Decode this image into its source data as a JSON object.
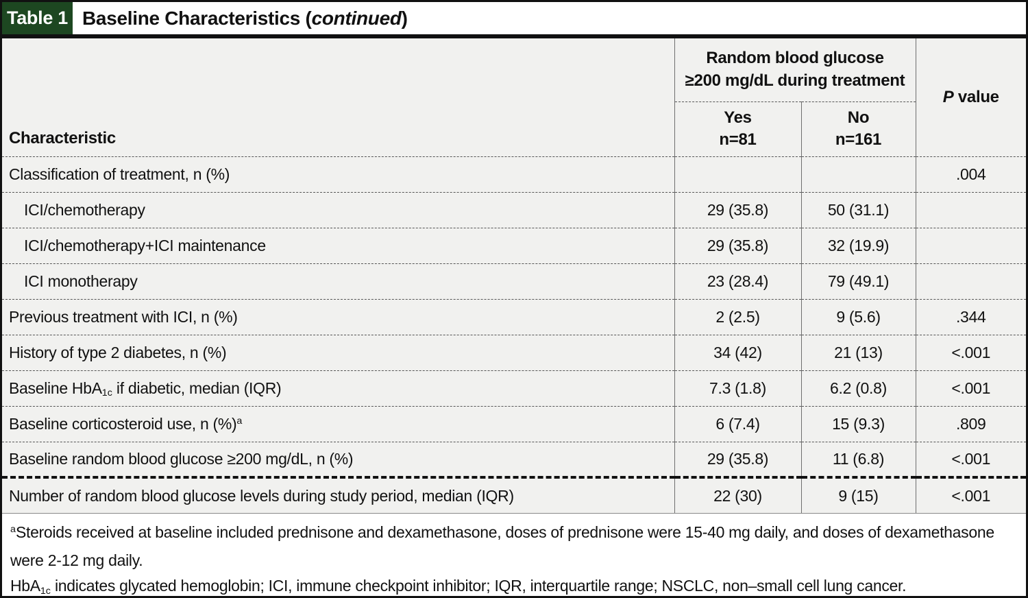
{
  "colors": {
    "badge_green": "#1d4721",
    "table_background": "#f1f1ef",
    "border_black": "#111111"
  },
  "title_bar": {
    "badge": "Table 1",
    "title_prefix": "Baseline Characteristics (",
    "title_italic": "continued",
    "title_suffix": ")"
  },
  "table": {
    "char_header": "Characteristic",
    "span_header": {
      "line1": "Random blood glucose",
      "line2": "≥200 mg/dL during treatment"
    },
    "yes_header": {
      "label": "Yes",
      "n": "n=81"
    },
    "no_header": {
      "label": "No",
      "n": "n=161"
    },
    "p_header": {
      "italic": "P",
      "rest": " value"
    },
    "rows": [
      {
        "label": "Classification of treatment, n (%)",
        "yes": "",
        "no": "",
        "p": ".004"
      },
      {
        "label": "ICI/chemotherapy",
        "yes": "29 (35.8)",
        "no": "50 (31.1)",
        "p": ""
      },
      {
        "label": "ICI/chemotherapy+ICI maintenance",
        "yes": "29 (35.8)",
        "no": "32 (19.9)",
        "p": ""
      },
      {
        "label": "ICI monotherapy",
        "yes": "23 (28.4)",
        "no": "79 (49.1)",
        "p": ""
      },
      {
        "label": "Previous treatment with ICI, n (%)",
        "yes": "2 (2.5)",
        "no": "9 (5.6)",
        "p": ".344"
      },
      {
        "label": "History of type 2 diabetes, n (%)",
        "yes": "34 (42)",
        "no": "21 (13)",
        "p": "<.001"
      },
      {
        "label_prefix": "Baseline HbA",
        "label_sub": "1c",
        "label_suffix": " if diabetic, median (IQR)",
        "yes": "7.3 (1.8)",
        "no": "6.2 (0.8)",
        "p": "<.001"
      },
      {
        "label": "Baseline corticosteroid use, n (%)",
        "label_sup": "a",
        "yes": "6 (7.4)",
        "no": "15 (9.3)",
        "p": ".809"
      },
      {
        "label": "Baseline random blood glucose ≥200 mg/dL, n (%)",
        "yes": "29 (35.8)",
        "no": "11 (6.8)",
        "p": "<.001"
      },
      {
        "label": "Number of random blood glucose levels during study period, median (IQR)",
        "yes": "22 (30)",
        "no": "9 (15)",
        "p": "<.001"
      }
    ]
  },
  "footnotes": {
    "note_a_sup": "a",
    "note_a": "Steroids received at baseline included prednisone and dexamethasone, doses of prednisone were 15-40 mg daily, and doses of dexamethasone were 2-12 mg daily.",
    "abbrev_prefix": "HbA",
    "abbrev_sub": "1c",
    "abbrev_rest": " indicates glycated hemoglobin; ICI, immune checkpoint inhibitor; IQR, interquartile range; NSCLC, non–small cell lung cancer."
  }
}
